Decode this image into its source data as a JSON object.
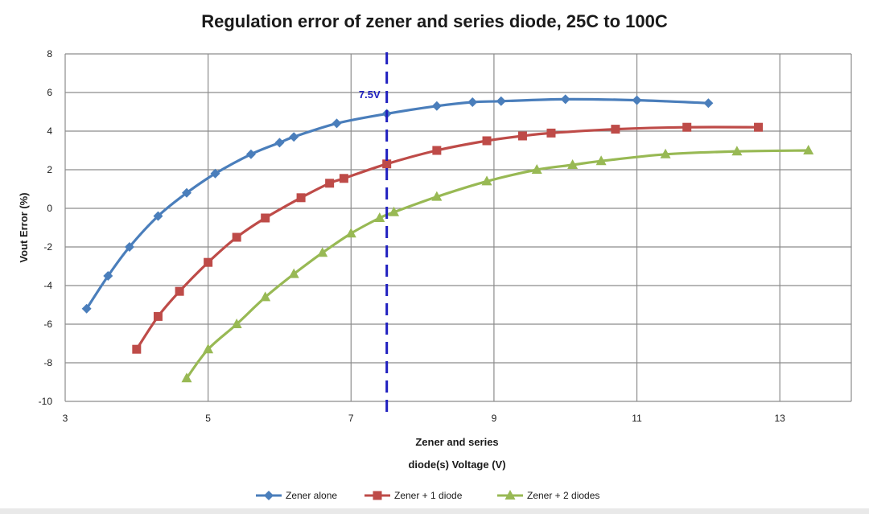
{
  "chart_data": {
    "type": "line",
    "title": "Regulation error of zener and series diode, 25C to 100C",
    "ylabel": "Vout Error (%)",
    "xlabel_lines": [
      "Zener and series",
      "diode(s) Voltage (V)"
    ],
    "xlim": [
      3,
      14
    ],
    "ylim": [
      -10,
      8
    ],
    "xticks": [
      3,
      5,
      7,
      9,
      11,
      13
    ],
    "yticks": [
      -10,
      -8,
      -6,
      -4,
      -2,
      0,
      2,
      4,
      6,
      8
    ],
    "grid": true,
    "legend_position": "bottom",
    "annotation": {
      "label": "7.5V",
      "x": 7.5,
      "color": "#1f1fbf"
    },
    "series": [
      {
        "name": "Zener alone",
        "color": "#4a7ebb",
        "marker": "diamond",
        "x": [
          3.3,
          3.6,
          3.9,
          4.3,
          4.7,
          5.1,
          5.6,
          6.0,
          6.2,
          6.8,
          7.5,
          8.2,
          8.7,
          9.1,
          10.0,
          11.0,
          12.0
        ],
        "y": [
          -5.2,
          -3.5,
          -2.0,
          -0.4,
          0.8,
          1.8,
          2.8,
          3.4,
          3.7,
          4.4,
          4.9,
          5.3,
          5.5,
          5.55,
          5.65,
          5.6,
          5.45
        ]
      },
      {
        "name": "Zener + 1 diode",
        "color": "#be4b48",
        "marker": "square",
        "x": [
          4.0,
          4.3,
          4.6,
          5.0,
          5.4,
          5.8,
          6.3,
          6.7,
          6.9,
          7.5,
          8.2,
          8.9,
          9.4,
          9.8,
          10.7,
          11.7,
          12.7
        ],
        "y": [
          -7.3,
          -5.6,
          -4.3,
          -2.8,
          -1.5,
          -0.5,
          0.55,
          1.3,
          1.55,
          2.3,
          3.0,
          3.5,
          3.75,
          3.9,
          4.1,
          4.2,
          4.2
        ]
      },
      {
        "name": "Zener + 2 diodes",
        "color": "#98b954",
        "marker": "triangle",
        "x": [
          4.7,
          5.0,
          5.4,
          5.8,
          6.2,
          6.6,
          7.0,
          7.4,
          7.6,
          8.2,
          8.9,
          9.6,
          10.1,
          10.5,
          11.4,
          12.4,
          13.4
        ],
        "y": [
          -8.8,
          -7.3,
          -6.0,
          -4.6,
          -3.4,
          -2.3,
          -1.3,
          -0.5,
          -0.2,
          0.6,
          1.4,
          2.0,
          2.25,
          2.45,
          2.8,
          2.95,
          3.0
        ]
      }
    ]
  }
}
